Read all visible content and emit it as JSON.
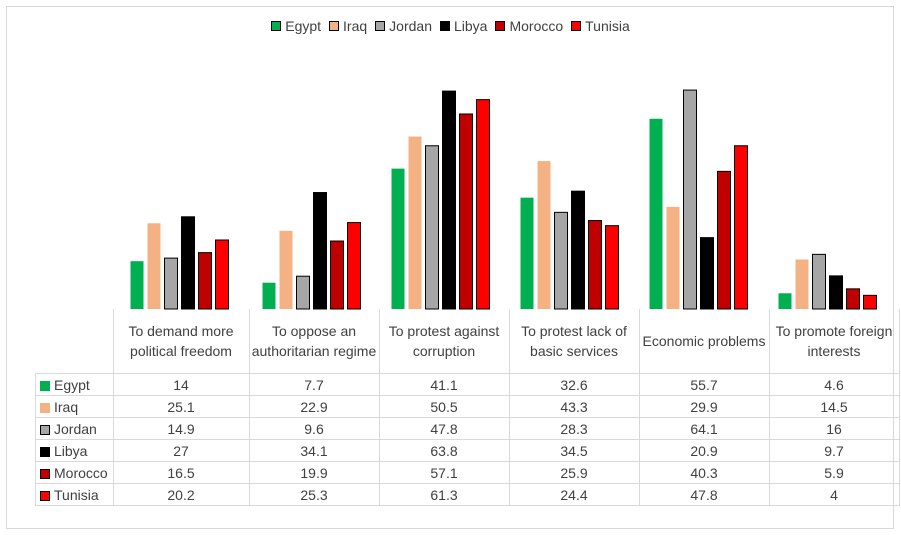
{
  "chart_data": {
    "type": "bar",
    "categories": [
      "To demand more political freedom",
      "To oppose an authoritarian regime",
      "To protest against corruption",
      "To protest lack of basic services",
      "Economic problems",
      "To promote foreign interests"
    ],
    "series": [
      {
        "name": "Egypt",
        "color": "#00b050",
        "values": [
          14,
          7.7,
          41.1,
          32.6,
          55.7,
          4.6
        ]
      },
      {
        "name": "Iraq",
        "color": "#f4b183",
        "values": [
          25.1,
          22.9,
          50.5,
          43.3,
          29.9,
          14.5
        ]
      },
      {
        "name": "Jordan",
        "color": "#a6a6a6",
        "values": [
          14.9,
          9.6,
          47.8,
          28.3,
          64.1,
          16
        ]
      },
      {
        "name": "Libya",
        "color": "#000000",
        "values": [
          27,
          34.1,
          63.8,
          34.5,
          20.9,
          9.7
        ]
      },
      {
        "name": "Morocco",
        "color": "#c00000",
        "values": [
          16.5,
          19.9,
          57.1,
          25.9,
          40.3,
          5.9
        ]
      },
      {
        "name": "Tunisia",
        "color": "#ff0000",
        "values": [
          20.2,
          25.3,
          61.3,
          24.4,
          47.8,
          4
        ]
      }
    ],
    "ylim": [
      0,
      65
    ],
    "legend_position": "top",
    "grid": false,
    "data_table": true
  }
}
